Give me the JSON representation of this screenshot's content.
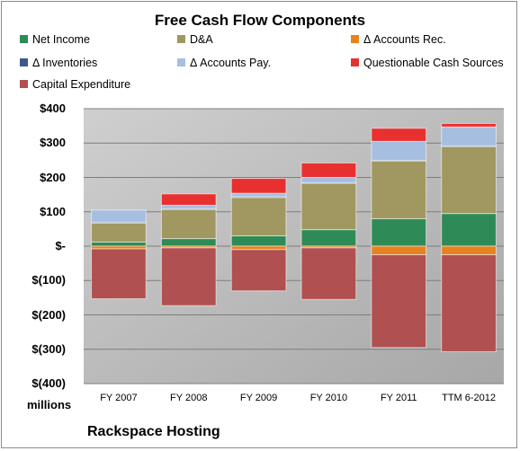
{
  "chart_data": {
    "type": "bar",
    "stacked": true,
    "title": "Free Cash Flow Components",
    "categories": [
      "FY 2007",
      "FY 2008",
      "FY 2009",
      "FY 2010",
      "FY 2011",
      "TTM 6-2012"
    ],
    "y_tick_labels": [
      "$400",
      "$300",
      "$200",
      "$100",
      "$-",
      "$(100)",
      "$(200)",
      "$(300)",
      "$(400)"
    ],
    "ylim": [
      -400,
      400
    ],
    "grid": true,
    "legend_placement": "top",
    "series": [
      {
        "name": "Net Income",
        "color": "#2e8b57",
        "values": [
          12,
          22,
          30,
          48,
          80,
          95
        ]
      },
      {
        "name": "D&A",
        "color": "#a09860",
        "values": [
          55,
          85,
          112,
          135,
          168,
          195
        ]
      },
      {
        "name": "Δ Accounts Rec.",
        "color": "#e8821e",
        "values": [
          -8,
          -5,
          -10,
          -5,
          -25,
          -25
        ]
      },
      {
        "name": "Δ Inventories",
        "color": "#3a5a8c",
        "values": [
          3,
          2,
          2,
          2,
          2,
          2
        ]
      },
      {
        "name": "Δ Accounts Pay.",
        "color": "#a6bee0",
        "values": [
          35,
          10,
          10,
          15,
          55,
          55
        ]
      },
      {
        "name": "Questionable Cash Sources",
        "color": "#e83030",
        "values": [
          0,
          33,
          43,
          42,
          38,
          10
        ]
      },
      {
        "name": "Capital Expenditure",
        "color": "#b05050",
        "values": [
          -145,
          -168,
          -120,
          -150,
          -270,
          -282
        ]
      }
    ]
  },
  "units_label": "millions",
  "company": "Rackspace Hosting"
}
